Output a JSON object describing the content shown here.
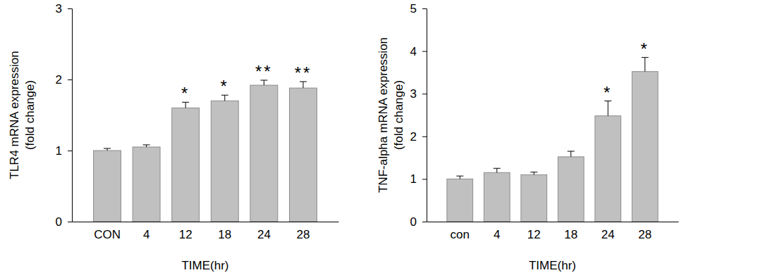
{
  "chart_data": [
    {
      "type": "bar",
      "ylabel": [
        "TLR4 mRNA expression",
        "(fold change)"
      ],
      "xlabel": "TIME(hr)",
      "categories": [
        "CON",
        "4",
        "12",
        "18",
        "24",
        "28"
      ],
      "values": [
        1.0,
        1.05,
        1.6,
        1.7,
        1.92,
        1.88
      ],
      "errors": [
        0.03,
        0.03,
        0.08,
        0.08,
        0.07,
        0.09
      ],
      "significance": [
        null,
        null,
        "*",
        "*",
        "**",
        "**"
      ],
      "color": "#c0c0c0",
      "ylim": [
        0,
        3
      ],
      "yticks": [
        0,
        1,
        2,
        3
      ]
    },
    {
      "type": "bar",
      "ylabel": [
        "TNF-alpha mRNA expression",
        "(fold change)"
      ],
      "xlabel": "TIME(hr)",
      "categories": [
        "con",
        "4",
        "12",
        "18",
        "24",
        "28"
      ],
      "values": [
        1.0,
        1.15,
        1.1,
        1.52,
        2.48,
        3.52
      ],
      "errors": [
        0.07,
        0.1,
        0.06,
        0.13,
        0.35,
        0.33
      ],
      "significance": [
        null,
        null,
        null,
        null,
        "*",
        "*"
      ],
      "color": "#c0c0c0",
      "ylim": [
        0,
        5
      ],
      "yticks": [
        0,
        1,
        2,
        3,
        4,
        5
      ]
    }
  ]
}
